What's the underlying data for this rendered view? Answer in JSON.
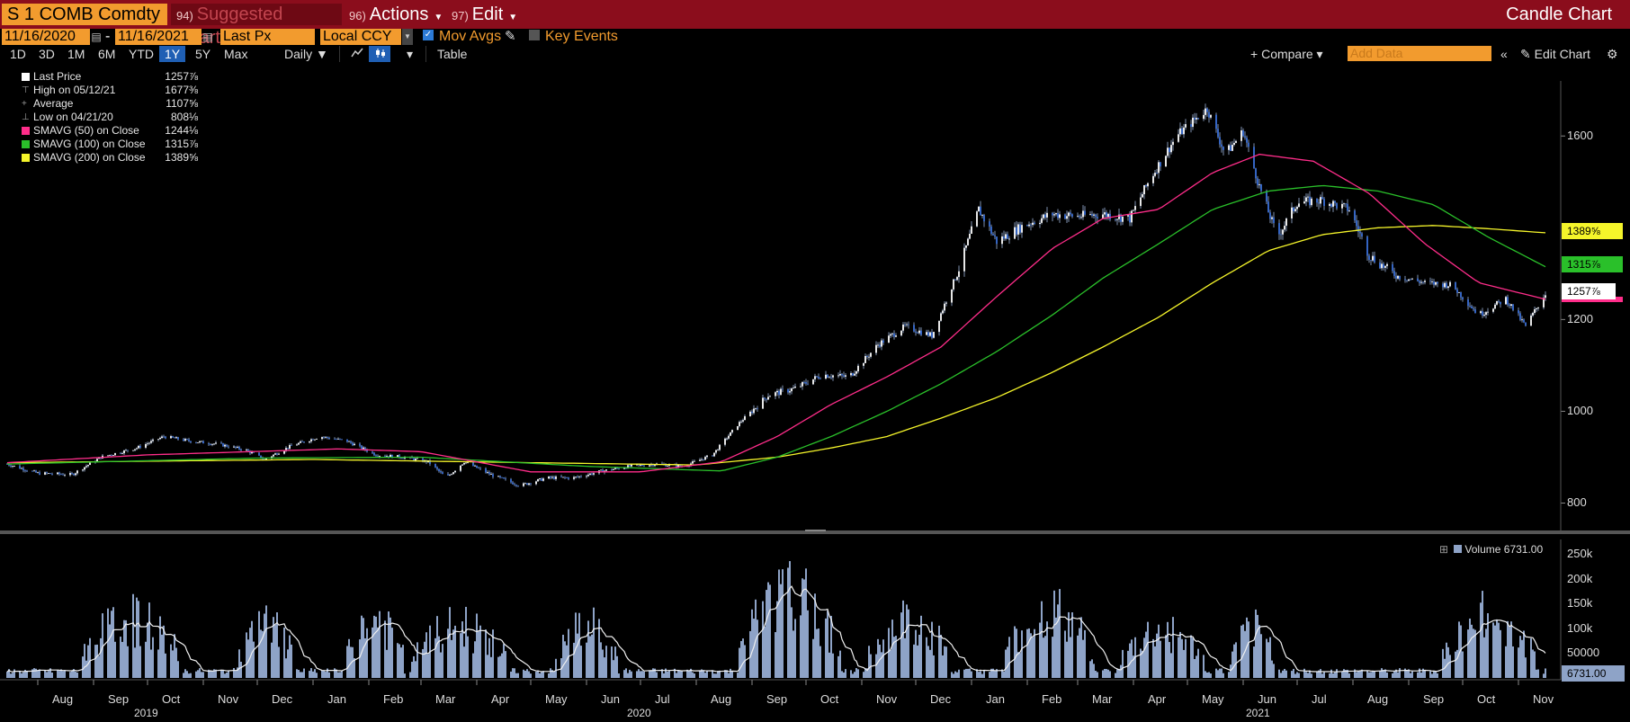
{
  "titlebar": {
    "ticker": "S 1 COMB Comdty",
    "suggested": {
      "num": "94)",
      "label": "Suggested Charts"
    },
    "actions": {
      "num": "96)",
      "label": "Actions"
    },
    "edit": {
      "num": "97)",
      "label": "Edit"
    },
    "right_title": "Candle Chart"
  },
  "controls": {
    "start_date": "11/16/2020",
    "end_date": "11/16/2021",
    "field": "Last Px",
    "currency": "Local CCY",
    "mov_avgs_label": "Mov Avgs",
    "key_events_label": "Key Events"
  },
  "ranges": [
    "1D",
    "3D",
    "1M",
    "6M",
    "YTD",
    "1Y",
    "5Y",
    "Max"
  ],
  "selected_range": "1Y",
  "frequency": "Daily",
  "table_label": "Table",
  "compare_label": "Compare",
  "add_data_placeholder": "Add Data",
  "edit_chart_label": "Edit Chart",
  "legend": [
    {
      "label": "Last Price",
      "value": "1257⅞",
      "color": "#ffffff"
    },
    {
      "label": "High on 05/12/21",
      "value": "1677⅜",
      "color": ""
    },
    {
      "label": "Average",
      "value": "1107⅝",
      "color": ""
    },
    {
      "label": "Low on 04/21/20",
      "value": "808⅛",
      "color": ""
    },
    {
      "label": "SMAVG (50)  on Close",
      "value": "1244⅛",
      "color": "#ff2d8a"
    },
    {
      "label": "SMAVG (100)  on Close",
      "value": "1315⅞",
      "color": "#2ac02a"
    },
    {
      "label": "SMAVG (200)  on Close",
      "value": "1389⅝",
      "color": "#f5f52a"
    }
  ],
  "price_tags": {
    "sma200": "1389⅝",
    "sma100": "1315⅞",
    "last": "1257⅞"
  },
  "volume_panel": {
    "legend_label": "Volume",
    "legend_value": "6731.00",
    "last_tag": "6731.00"
  },
  "colors": {
    "candle": "#9fb7dc",
    "sma50": "#ff2d8a",
    "sma100": "#2ac02a",
    "sma200": "#f5f52a",
    "volume": "#8ea3c7",
    "tag_last": "#ffffff",
    "tag_sma100": "#2ac02a",
    "tag_sma200": "#f5f52a",
    "tag_sma50": "#ff2d8a"
  },
  "chart_data": {
    "type": "candlestick",
    "y_ticks": [
      800,
      1000,
      1200,
      1600
    ],
    "y_range": [
      750,
      1720
    ],
    "volume_ticks": [
      "250k",
      "200k",
      "150k",
      "100k",
      "50000"
    ],
    "volume_range": [
      0,
      270000
    ],
    "x_month_labels": [
      "Aug",
      "Sep",
      "Oct",
      "Nov",
      "Dec",
      "Jan",
      "Feb",
      "Mar",
      "Apr",
      "May",
      "Jun",
      "Jul",
      "Aug",
      "Sep",
      "Oct",
      "Nov",
      "Dec",
      "Jan",
      "Feb",
      "Mar",
      "Apr",
      "May",
      "Jun",
      "Jul",
      "Aug",
      "Sep",
      "Oct",
      "Nov"
    ],
    "x_year_labels": [
      "2019",
      "2020",
      "2021"
    ],
    "price_series": [
      [
        "2019-07-15",
        885
      ],
      [
        "2019-08-01",
        865
      ],
      [
        "2019-08-20",
        862
      ],
      [
        "2019-09-05",
        900
      ],
      [
        "2019-09-25",
        920
      ],
      [
        "2019-10-10",
        945
      ],
      [
        "2019-10-25",
        935
      ],
      [
        "2019-11-10",
        928
      ],
      [
        "2019-11-25",
        915
      ],
      [
        "2019-12-05",
        895
      ],
      [
        "2019-12-20",
        925
      ],
      [
        "2020-01-05",
        945
      ],
      [
        "2020-01-20",
        935
      ],
      [
        "2020-02-05",
        905
      ],
      [
        "2020-02-20",
        900
      ],
      [
        "2020-03-05",
        890
      ],
      [
        "2020-03-15",
        855
      ],
      [
        "2020-03-25",
        890
      ],
      [
        "2020-04-10",
        860
      ],
      [
        "2020-04-25",
        838
      ],
      [
        "2020-05-10",
        855
      ],
      [
        "2020-05-25",
        855
      ],
      [
        "2020-06-10",
        870
      ],
      [
        "2020-06-25",
        880
      ],
      [
        "2020-07-10",
        885
      ],
      [
        "2020-07-25",
        880
      ],
      [
        "2020-08-10",
        905
      ],
      [
        "2020-08-25",
        975
      ],
      [
        "2020-09-10",
        1035
      ],
      [
        "2020-09-25",
        1050
      ],
      [
        "2020-10-10",
        1080
      ],
      [
        "2020-10-25",
        1075
      ],
      [
        "2020-11-10",
        1145
      ],
      [
        "2020-11-25",
        1185
      ],
      [
        "2020-12-10",
        1165
      ],
      [
        "2020-12-25",
        1310
      ],
      [
        "2021-01-05",
        1440
      ],
      [
        "2021-01-15",
        1370
      ],
      [
        "2021-01-30",
        1405
      ],
      [
        "2021-02-15",
        1430
      ],
      [
        "2021-03-01",
        1425
      ],
      [
        "2021-03-15",
        1430
      ],
      [
        "2021-03-30",
        1420
      ],
      [
        "2021-04-10",
        1505
      ],
      [
        "2021-04-25",
        1600
      ],
      [
        "2021-05-12",
        1660
      ],
      [
        "2021-05-22",
        1560
      ],
      [
        "2021-06-01",
        1610
      ],
      [
        "2021-06-10",
        1490
      ],
      [
        "2021-06-20",
        1380
      ],
      [
        "2021-07-01",
        1455
      ],
      [
        "2021-07-15",
        1460
      ],
      [
        "2021-07-30",
        1440
      ],
      [
        "2021-08-10",
        1340
      ],
      [
        "2021-08-25",
        1295
      ],
      [
        "2021-09-10",
        1280
      ],
      [
        "2021-09-25",
        1275
      ],
      [
        "2021-10-10",
        1210
      ],
      [
        "2021-10-25",
        1245
      ],
      [
        "2021-11-05",
        1185
      ],
      [
        "2021-11-16",
        1257
      ]
    ],
    "sma50": [
      [
        "2019-07-15",
        888
      ],
      [
        "2019-10-01",
        905
      ],
      [
        "2020-01-15",
        918
      ],
      [
        "2020-03-01",
        912
      ],
      [
        "2020-05-01",
        868
      ],
      [
        "2020-07-01",
        868
      ],
      [
        "2020-08-15",
        890
      ],
      [
        "2020-09-15",
        945
      ],
      [
        "2020-10-15",
        1015
      ],
      [
        "2020-11-15",
        1075
      ],
      [
        "2020-12-15",
        1140
      ],
      [
        "2021-01-15",
        1250
      ],
      [
        "2021-02-15",
        1355
      ],
      [
        "2021-03-15",
        1420
      ],
      [
        "2021-04-15",
        1440
      ],
      [
        "2021-05-15",
        1520
      ],
      [
        "2021-06-10",
        1560
      ],
      [
        "2021-07-10",
        1545
      ],
      [
        "2021-08-10",
        1475
      ],
      [
        "2021-09-10",
        1365
      ],
      [
        "2021-10-10",
        1280
      ],
      [
        "2021-11-16",
        1244
      ]
    ],
    "sma100": [
      [
        "2019-07-15",
        885
      ],
      [
        "2019-12-01",
        898
      ],
      [
        "2020-03-01",
        900
      ],
      [
        "2020-06-01",
        880
      ],
      [
        "2020-08-15",
        870
      ],
      [
        "2020-09-15",
        900
      ],
      [
        "2020-10-15",
        945
      ],
      [
        "2020-11-15",
        1000
      ],
      [
        "2020-12-15",
        1060
      ],
      [
        "2021-01-15",
        1130
      ],
      [
        "2021-02-15",
        1210
      ],
      [
        "2021-03-15",
        1290
      ],
      [
        "2021-04-15",
        1365
      ],
      [
        "2021-05-15",
        1440
      ],
      [
        "2021-06-15",
        1480
      ],
      [
        "2021-07-15",
        1492
      ],
      [
        "2021-08-15",
        1480
      ],
      [
        "2021-09-15",
        1450
      ],
      [
        "2021-10-15",
        1380
      ],
      [
        "2021-11-16",
        1315
      ]
    ],
    "sma200": [
      [
        "2019-07-15",
        888
      ],
      [
        "2020-01-01",
        895
      ],
      [
        "2020-05-01",
        888
      ],
      [
        "2020-08-01",
        883
      ],
      [
        "2020-09-15",
        900
      ],
      [
        "2020-10-15",
        920
      ],
      [
        "2020-11-15",
        945
      ],
      [
        "2020-12-15",
        985
      ],
      [
        "2021-01-15",
        1030
      ],
      [
        "2021-02-15",
        1085
      ],
      [
        "2021-03-15",
        1140
      ],
      [
        "2021-04-15",
        1205
      ],
      [
        "2021-05-15",
        1280
      ],
      [
        "2021-06-15",
        1350
      ],
      [
        "2021-07-15",
        1385
      ],
      [
        "2021-08-15",
        1400
      ],
      [
        "2021-09-15",
        1405
      ],
      [
        "2021-10-15",
        1398
      ],
      [
        "2021-11-16",
        1389
      ]
    ]
  }
}
